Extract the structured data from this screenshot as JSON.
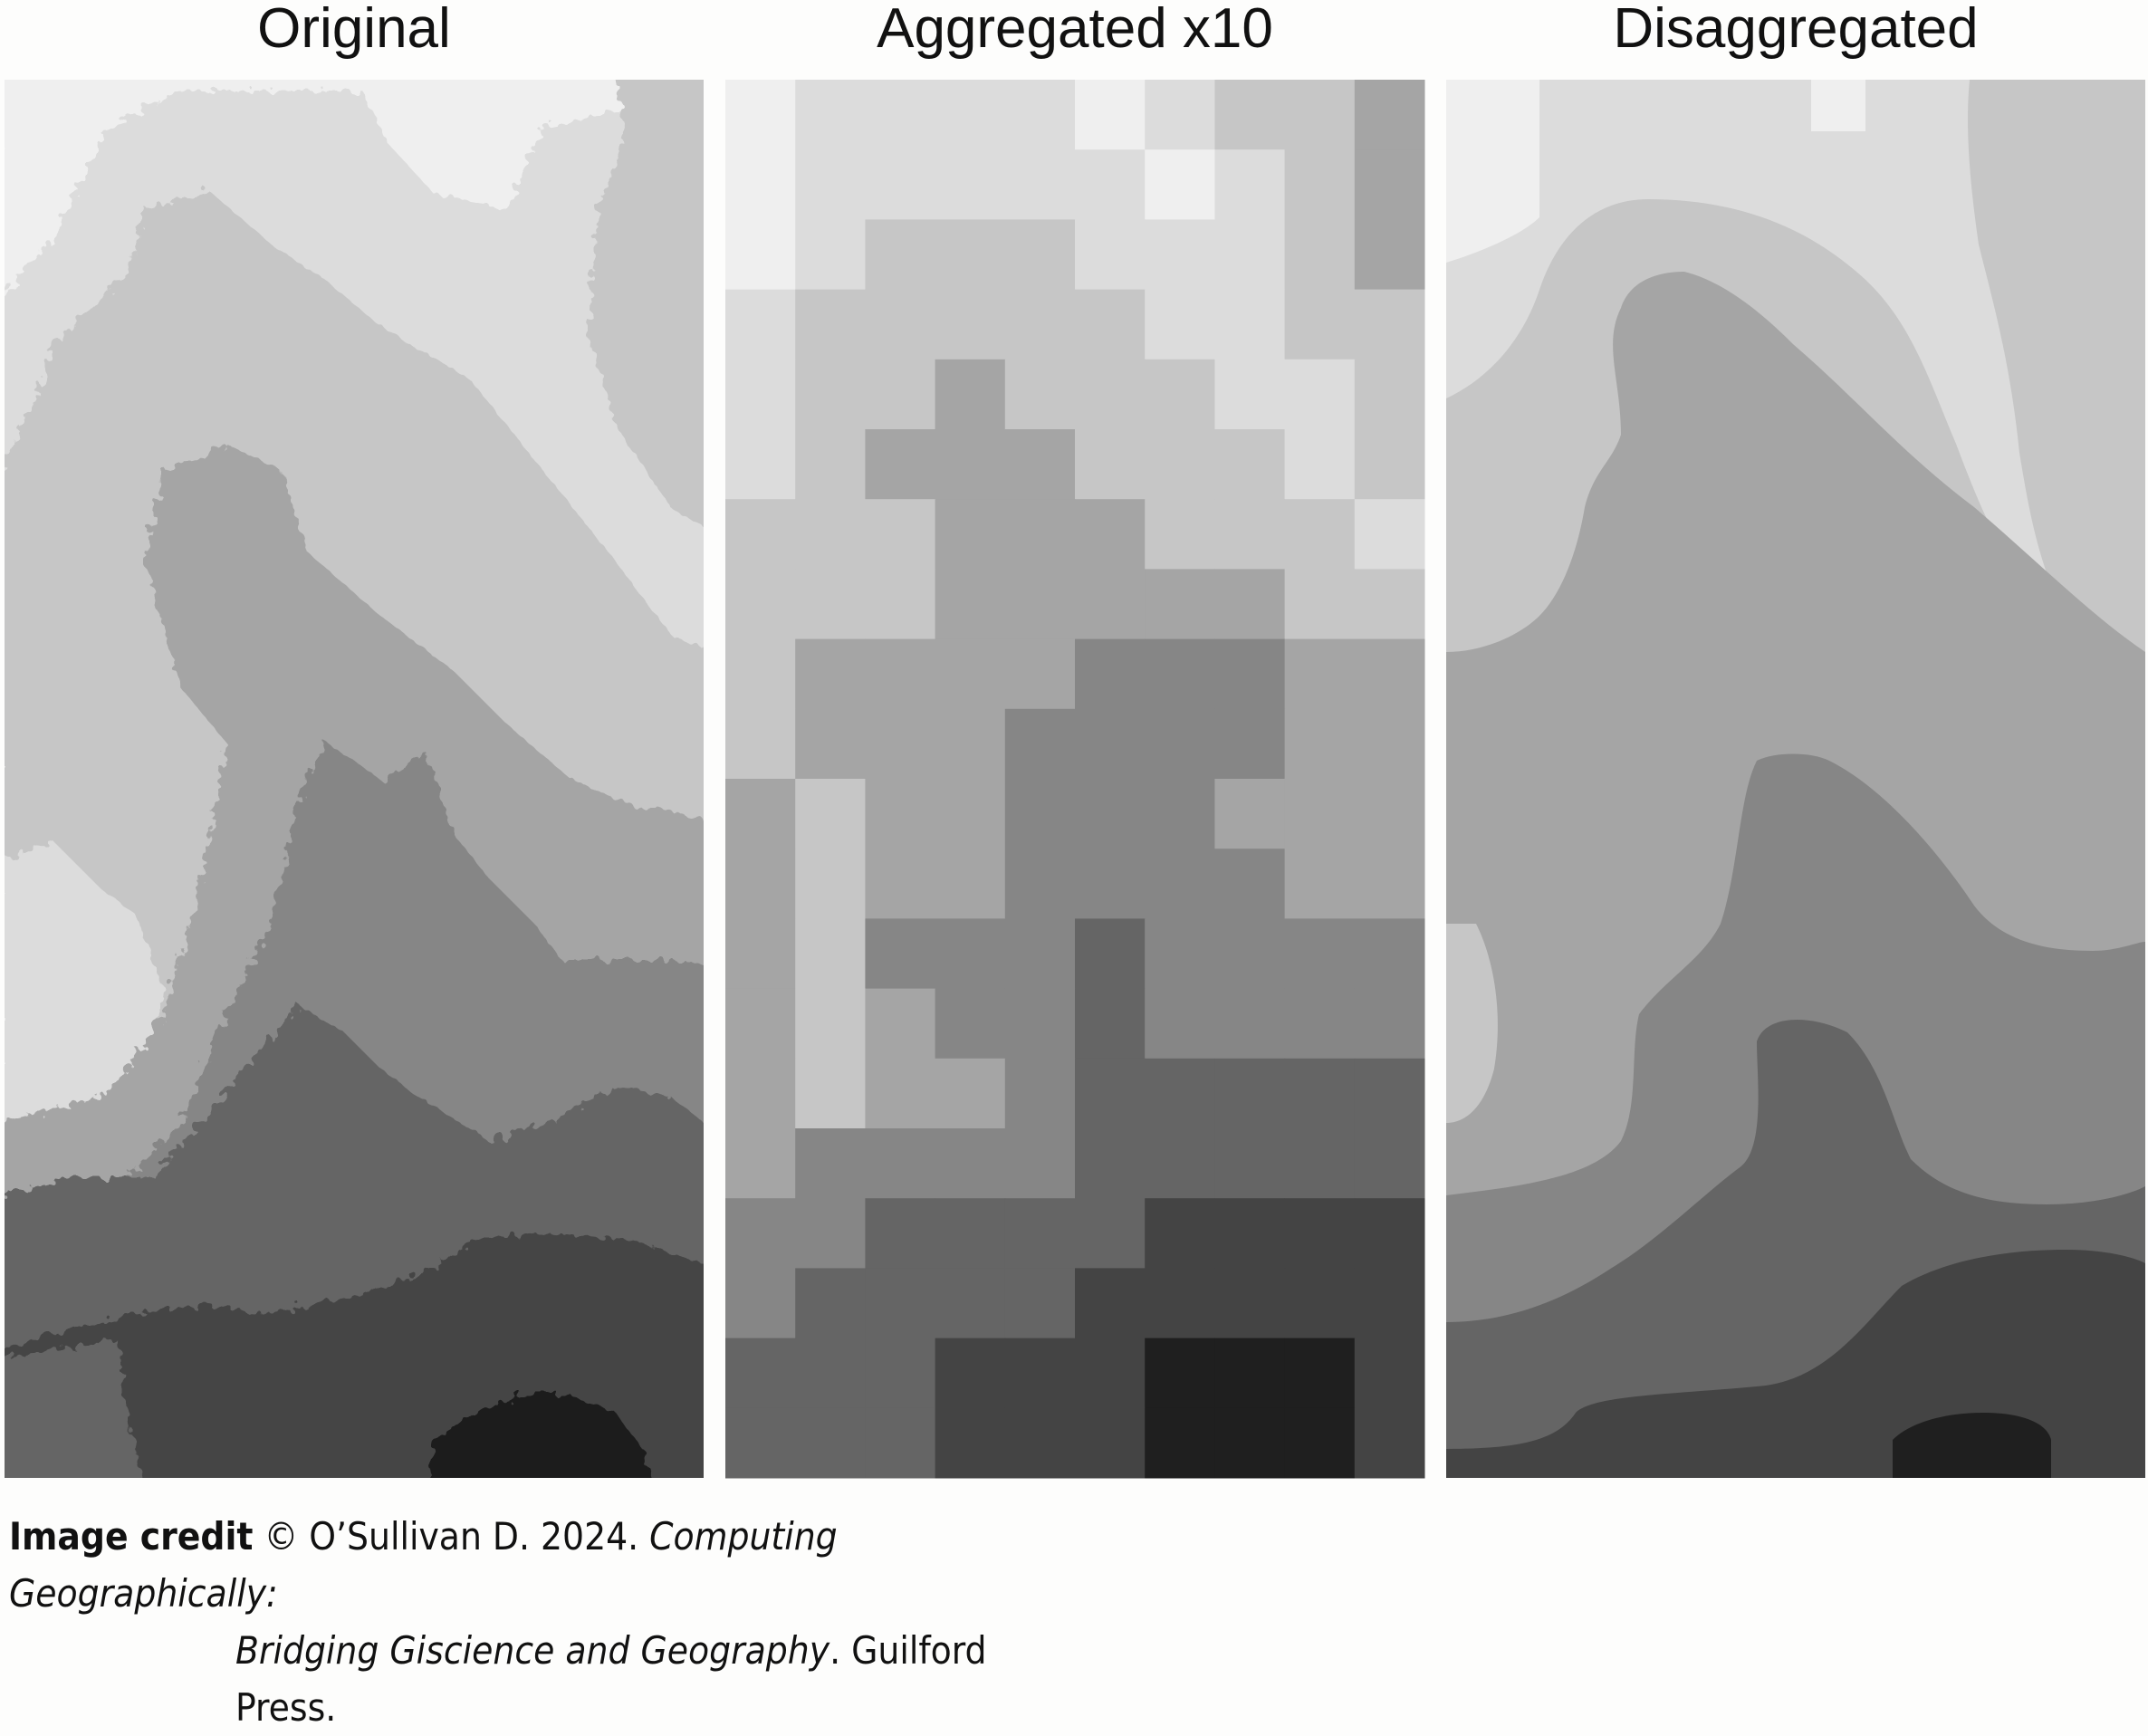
{
  "panels": [
    {
      "title": "Original"
    },
    {
      "title": "Aggregated x10"
    },
    {
      "title": "Disaggregated"
    }
  ],
  "grayscale": [
    "#efefef",
    "#dcdcdc",
    "#c6c6c6",
    "#a5a5a5",
    "#868686",
    "#656565",
    "#444444",
    "#1f1f1f"
  ],
  "aggregated_grid_classes": [
    [
      0,
      1,
      1,
      1,
      1,
      0,
      1,
      2,
      2,
      3
    ],
    [
      0,
      1,
      1,
      1,
      1,
      1,
      0,
      1,
      2,
      3
    ],
    [
      0,
      1,
      2,
      2,
      2,
      1,
      1,
      1,
      2,
      3
    ],
    [
      1,
      2,
      2,
      2,
      2,
      2,
      1,
      1,
      2,
      2
    ],
    [
      1,
      2,
      2,
      3,
      2,
      2,
      2,
      1,
      1,
      2
    ],
    [
      1,
      2,
      3,
      3,
      3,
      2,
      2,
      2,
      1,
      2
    ],
    [
      2,
      2,
      2,
      3,
      3,
      3,
      2,
      2,
      2,
      1
    ],
    [
      2,
      2,
      2,
      3,
      3,
      3,
      3,
      3,
      2,
      2
    ],
    [
      2,
      3,
      3,
      3,
      3,
      4,
      4,
      4,
      3,
      3
    ],
    [
      2,
      3,
      3,
      3,
      4,
      4,
      4,
      4,
      3,
      3
    ],
    [
      3,
      2,
      3,
      3,
      4,
      4,
      4,
      3,
      3,
      3
    ],
    [
      3,
      2,
      3,
      3,
      4,
      4,
      4,
      4,
      3,
      3
    ],
    [
      3,
      2,
      4,
      4,
      4,
      5,
      4,
      4,
      4,
      4
    ],
    [
      3,
      2,
      3,
      4,
      4,
      5,
      4,
      4,
      4,
      4
    ],
    [
      3,
      2,
      3,
      3,
      4,
      5,
      5,
      5,
      5,
      5
    ],
    [
      3,
      4,
      4,
      4,
      4,
      5,
      5,
      5,
      5,
      5
    ],
    [
      4,
      4,
      5,
      5,
      5,
      5,
      6,
      6,
      6,
      6
    ],
    [
      4,
      5,
      5,
      5,
      5,
      6,
      6,
      6,
      6,
      6
    ],
    [
      5,
      5,
      5,
      6,
      6,
      6,
      7,
      7,
      7,
      6
    ],
    [
      5,
      5,
      5,
      6,
      6,
      6,
      7,
      7,
      7,
      6
    ]
  ],
  "credit": {
    "label": "Image credit",
    "text1": " © O’Sullivan D. 2024. ",
    "italic1": "Computing Geographically:",
    "italic2": "Bridging Giscience and Geography",
    "text2": ". Guilford Press."
  }
}
